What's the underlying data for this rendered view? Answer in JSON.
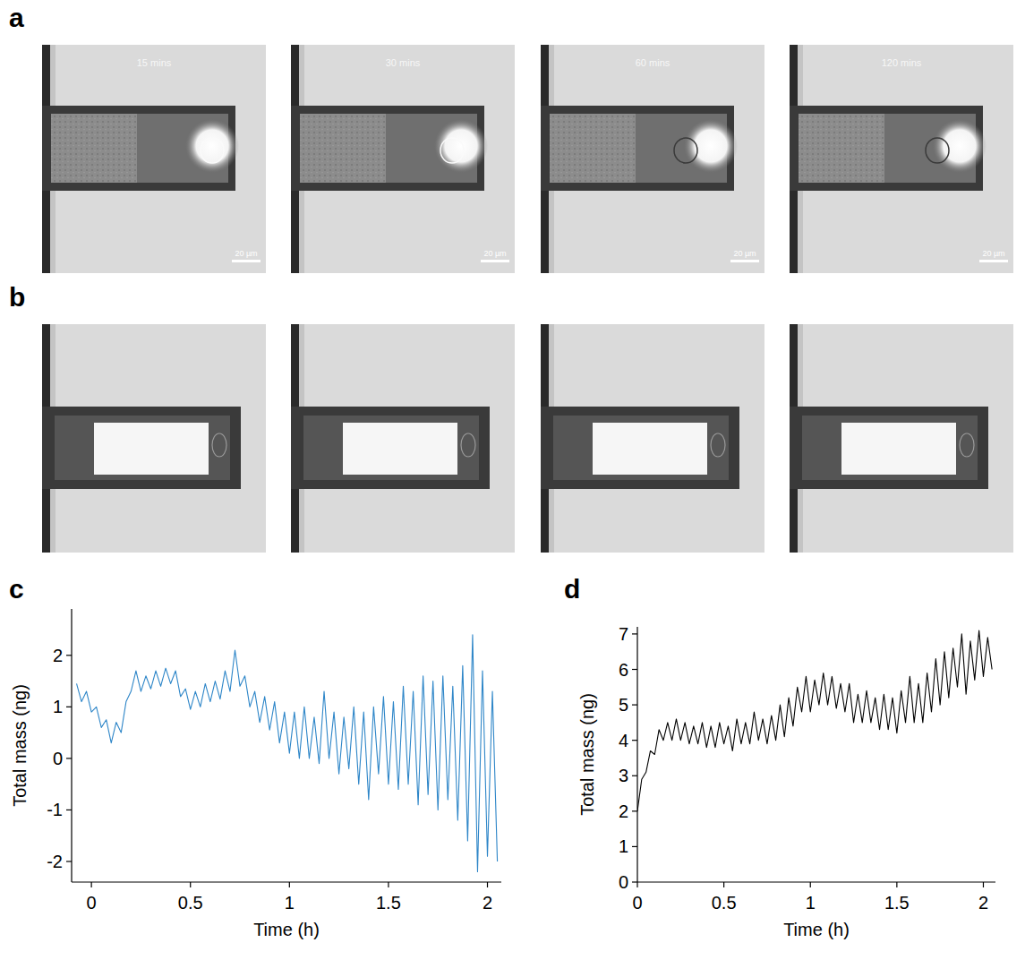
{
  "panel_labels": [
    "a",
    "b",
    "c",
    "d"
  ],
  "micrographs": {
    "time_labels": [
      "15 mins",
      "30 mins",
      "60 mins",
      "120 mins"
    ],
    "scale_bar": "20 µm"
  },
  "chart_data": [
    {
      "type": "line",
      "x_label": "Time (h)",
      "y_label": "Total mass (ng)",
      "color": "#2e86c8",
      "xlim": [
        -0.1,
        2.07
      ],
      "xticks": [
        0,
        0.5,
        1,
        1.5,
        2
      ],
      "ylim": [
        -2.4,
        2.9
      ],
      "yticks": [
        -2,
        -1,
        0,
        1,
        2
      ],
      "x": [
        -0.075,
        -0.05,
        -0.025,
        0,
        0.025,
        0.05,
        0.075,
        0.1,
        0.125,
        0.15,
        0.175,
        0.2,
        0.225,
        0.25,
        0.275,
        0.3,
        0.325,
        0.35,
        0.375,
        0.4,
        0.425,
        0.45,
        0.475,
        0.5,
        0.525,
        0.55,
        0.575,
        0.6,
        0.625,
        0.65,
        0.675,
        0.7,
        0.725,
        0.75,
        0.775,
        0.8,
        0.825,
        0.85,
        0.875,
        0.9,
        0.925,
        0.95,
        0.975,
        1.0,
        1.025,
        1.05,
        1.075,
        1.1,
        1.125,
        1.15,
        1.175,
        1.2,
        1.225,
        1.25,
        1.275,
        1.3,
        1.325,
        1.35,
        1.375,
        1.4,
        1.425,
        1.45,
        1.475,
        1.5,
        1.525,
        1.55,
        1.575,
        1.6,
        1.625,
        1.65,
        1.675,
        1.7,
        1.725,
        1.75,
        1.775,
        1.8,
        1.825,
        1.85,
        1.875,
        1.9,
        1.925,
        1.95,
        1.975,
        2.0,
        2.025,
        2.05
      ],
      "values": [
        1.45,
        1.1,
        1.3,
        0.9,
        1.0,
        0.6,
        0.75,
        0.3,
        0.7,
        0.5,
        1.1,
        1.3,
        1.7,
        1.3,
        1.6,
        1.35,
        1.7,
        1.4,
        1.75,
        1.45,
        1.7,
        1.2,
        1.35,
        0.95,
        1.3,
        1.0,
        1.45,
        1.1,
        1.5,
        1.15,
        1.7,
        1.3,
        2.1,
        1.4,
        1.6,
        1.0,
        1.3,
        0.7,
        1.2,
        0.55,
        1.1,
        0.3,
        0.9,
        0.1,
        0.9,
        0.0,
        1.0,
        0.0,
        0.8,
        -0.1,
        1.3,
        0.0,
        0.9,
        -0.3,
        0.8,
        -0.2,
        1.0,
        -0.5,
        0.9,
        -0.8,
        1.0,
        -0.3,
        1.2,
        -0.5,
        1.1,
        -0.6,
        1.4,
        -0.5,
        1.3,
        -0.9,
        1.6,
        -0.7,
        1.5,
        -1.0,
        1.6,
        -0.8,
        1.4,
        -1.2,
        1.8,
        -1.6,
        2.4,
        -2.2,
        1.7,
        -1.9,
        1.3,
        -2.0
      ]
    },
    {
      "type": "line",
      "x_label": "Time (h)",
      "y_label": "Total mass (ng)",
      "color": "#000000",
      "xlim": [
        0,
        2.07
      ],
      "xticks": [
        0,
        0.5,
        1,
        1.5,
        2
      ],
      "ylim": [
        0,
        7.2
      ],
      "yticks": [
        0,
        1,
        2,
        3,
        4,
        5,
        6,
        7
      ],
      "x": [
        0,
        0.025,
        0.05,
        0.075,
        0.1,
        0.125,
        0.15,
        0.175,
        0.2,
        0.225,
        0.25,
        0.275,
        0.3,
        0.325,
        0.35,
        0.375,
        0.4,
        0.425,
        0.45,
        0.475,
        0.5,
        0.525,
        0.55,
        0.575,
        0.6,
        0.625,
        0.65,
        0.675,
        0.7,
        0.725,
        0.75,
        0.775,
        0.8,
        0.825,
        0.85,
        0.875,
        0.9,
        0.925,
        0.95,
        0.975,
        1.0,
        1.025,
        1.05,
        1.075,
        1.1,
        1.125,
        1.15,
        1.175,
        1.2,
        1.225,
        1.25,
        1.275,
        1.3,
        1.325,
        1.35,
        1.375,
        1.4,
        1.425,
        1.45,
        1.475,
        1.5,
        1.525,
        1.55,
        1.575,
        1.6,
        1.625,
        1.65,
        1.675,
        1.7,
        1.725,
        1.75,
        1.775,
        1.8,
        1.825,
        1.85,
        1.875,
        1.9,
        1.925,
        1.95,
        1.975,
        2.0,
        2.025,
        2.05
      ],
      "values": [
        2.0,
        2.9,
        3.1,
        3.7,
        3.6,
        4.3,
        4.0,
        4.5,
        4.0,
        4.6,
        4.0,
        4.5,
        3.9,
        4.4,
        3.9,
        4.5,
        3.8,
        4.4,
        3.8,
        4.5,
        3.9,
        4.4,
        3.7,
        4.6,
        3.9,
        4.5,
        3.9,
        4.8,
        4.0,
        4.6,
        3.9,
        4.7,
        4.0,
        5.0,
        4.1,
        5.2,
        4.4,
        5.5,
        4.8,
        5.8,
        4.8,
        5.7,
        5.0,
        5.9,
        5.0,
        5.8,
        4.9,
        5.6,
        4.8,
        5.6,
        4.5,
        5.3,
        4.5,
        5.4,
        4.5,
        5.2,
        4.3,
        5.3,
        4.3,
        5.2,
        4.2,
        5.4,
        4.5,
        5.8,
        4.5,
        5.6,
        4.5,
        5.9,
        4.8,
        6.3,
        5.0,
        6.5,
        5.2,
        6.6,
        5.5,
        7.0,
        5.3,
        6.8,
        5.7,
        7.1,
        5.8,
        6.9,
        6.0
      ]
    }
  ]
}
